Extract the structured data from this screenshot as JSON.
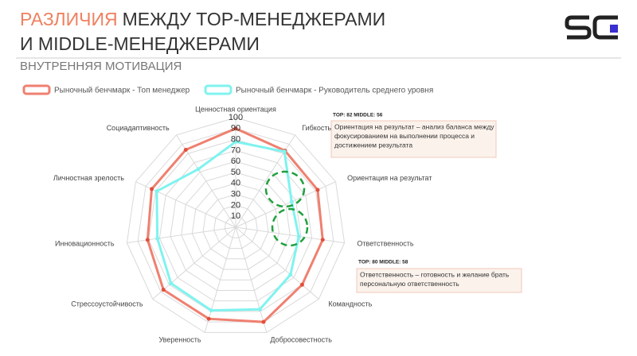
{
  "header": {
    "title_accent": "РАЗЛИЧИЯ",
    "title_rest": "МЕЖДУ TOP-МЕНЕДЖЕРАМИ",
    "title_line2": "И MIDDLE-МЕНЕДЖЕРАМИ",
    "subtitle": "ВНУТРЕННЯЯ МОТИВАЦИЯ"
  },
  "chart_data": {
    "type": "radar",
    "categories": [
      "Ценностная ориентация",
      "Гибкость",
      "Ориентация на результат",
      "Ответственность",
      "Командность",
      "Добросовестность",
      "Уверенность",
      "Стрессоустойчивость",
      "Инновационность",
      "Личностная зрелость",
      "Социадаптивность"
    ],
    "series": [
      {
        "name": "Рыночный бенчмарк - Топ менеджер",
        "color": "#ef8070",
        "values": [
          90,
          83,
          82,
          80,
          80,
          90,
          87,
          87,
          81,
          84,
          84
        ]
      },
      {
        "name": "Рыночный бенчмарк - Руководитель среднего уровня",
        "color": "#7ff3ef",
        "values": [
          78,
          82,
          56,
          58,
          66,
          78,
          79,
          78,
          72,
          79,
          63
        ]
      }
    ],
    "rlim": [
      0,
      100
    ],
    "rticks": [
      10,
      20,
      30,
      40,
      50,
      60,
      70,
      80,
      90,
      100
    ],
    "grid": true,
    "annotations": [
      {
        "label": "TOP: 82 MIDDLE: 56",
        "lines": [
          "Ориентация на результат – анализ баланса между",
          "фокусированием на выполнении процесса и",
          "достижением результата"
        ]
      },
      {
        "label": "TOP: 80 MIDDLE: 58",
        "lines": [
          "Ответственность – готовность и желание брать",
          "персональную ответственность"
        ]
      }
    ]
  }
}
